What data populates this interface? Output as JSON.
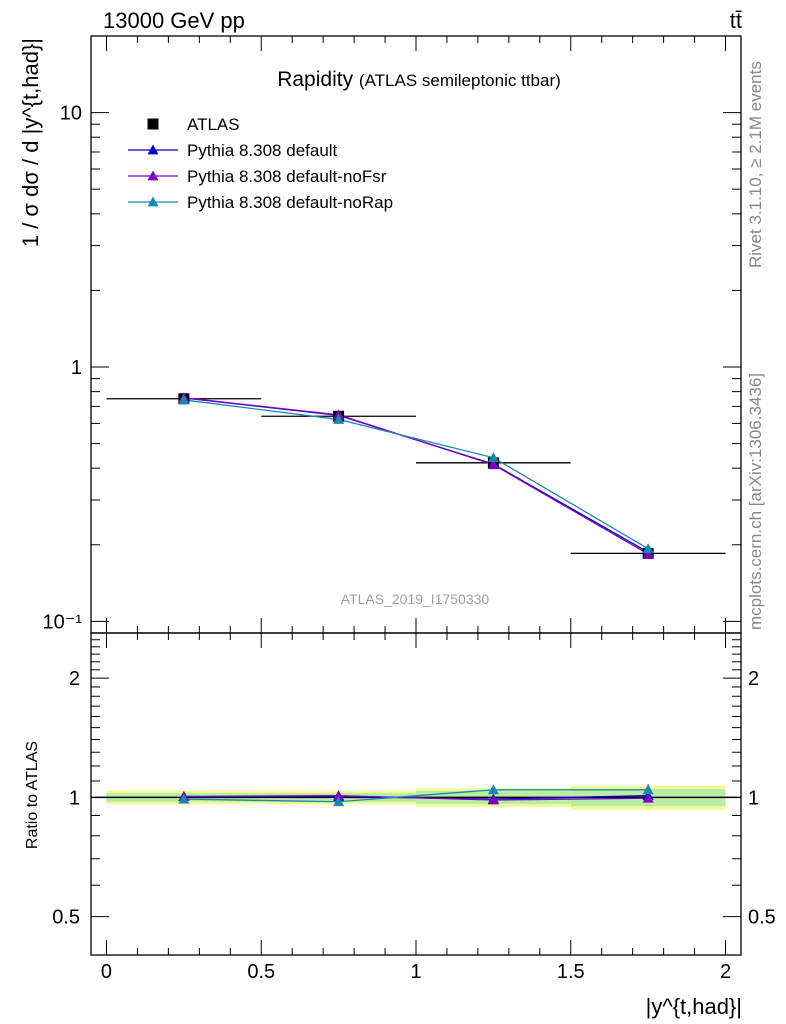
{
  "header": {
    "energy_label": "13000 GeV pp",
    "process_label": "tt̄"
  },
  "side_labels": {
    "rivet": "Rivet 3.1.10, ≥ 2.1M events",
    "mcplots": "mcplots.cern.ch [arXiv:1306.3436]"
  },
  "chart_data": {
    "type": "line",
    "title": "Rapidity",
    "subtitle": "(ATLAS semileptonic ttbar)",
    "analysis_label": "ATLAS_2019_I1750330",
    "xlabel": "|y^{t,had}|",
    "ylabel": "1 / σ dσ / d |y^{t,had}|",
    "x_axis": {
      "range": [
        -0.05,
        2.05
      ],
      "tick_labels": [
        "0",
        "0.5",
        "1",
        "1.5",
        "2"
      ]
    },
    "main_panel": {
      "y_scale": "log",
      "y_range": [
        0.09,
        20
      ],
      "tick_labels": [
        "10⁻¹",
        "1",
        "10"
      ],
      "legend_placement": "top-left",
      "series": [
        {
          "name": "ATLAS",
          "marker": "square",
          "color": "#000000",
          "x": [
            0.25,
            0.75,
            1.25,
            1.75
          ],
          "x_err": [
            0.25,
            0.25,
            0.25,
            0.25
          ],
          "y": [
            0.75,
            0.64,
            0.42,
            0.185
          ]
        },
        {
          "name": "Pythia 8.308 default",
          "marker": "triangle",
          "color": "#0000cc",
          "x": [
            0.25,
            0.75,
            1.25,
            1.75
          ],
          "y": [
            0.755,
            0.645,
            0.415,
            0.187
          ]
        },
        {
          "name": "Pythia 8.308 default-noFsr",
          "marker": "triangle",
          "color": "#7f00bf",
          "x": [
            0.25,
            0.75,
            1.25,
            1.75
          ],
          "y": [
            0.757,
            0.648,
            0.413,
            0.184
          ]
        },
        {
          "name": "Pythia 8.308 default-noRap",
          "marker": "triangle",
          "color": "#1a87b0",
          "x": [
            0.25,
            0.75,
            1.25,
            1.75
          ],
          "y": [
            0.742,
            0.622,
            0.44,
            0.193
          ]
        }
      ]
    },
    "ratio_panel": {
      "ylabel": "Ratio to ATLAS",
      "y_scale": "log",
      "y_range": [
        0.4,
        2.6
      ],
      "tick_labels": [
        "0.5",
        "1",
        "2"
      ],
      "band": {
        "x_low": [
          0,
          0.5,
          1.0,
          1.5
        ],
        "x_high": [
          0.5,
          1.0,
          1.5,
          2.0
        ],
        "yellow_low": [
          0.96,
          0.96,
          0.945,
          0.93
        ],
        "yellow_high": [
          1.04,
          1.04,
          1.055,
          1.07
        ],
        "green_low": [
          0.975,
          0.975,
          0.962,
          0.95
        ],
        "green_high": [
          1.025,
          1.025,
          1.038,
          1.05
        ]
      },
      "series": [
        {
          "name": "Pythia 8.308 default",
          "color": "#0000cc",
          "x": [
            0.25,
            0.75,
            1.25,
            1.75
          ],
          "y": [
            1.005,
            1.005,
            0.99,
            1.01
          ]
        },
        {
          "name": "Pythia 8.308 default-noFsr",
          "color": "#7f00bf",
          "x": [
            0.25,
            0.75,
            1.25,
            1.75
          ],
          "y": [
            1.005,
            1.01,
            0.985,
            0.995
          ]
        },
        {
          "name": "Pythia 8.308 default-noRap",
          "color": "#1a87b0",
          "x": [
            0.25,
            0.75,
            1.25,
            1.75
          ],
          "y": [
            0.99,
            0.975,
            1.045,
            1.045
          ],
          "y_err": [
            0.005,
            0.005,
            0.01,
            0.035
          ]
        }
      ]
    }
  }
}
